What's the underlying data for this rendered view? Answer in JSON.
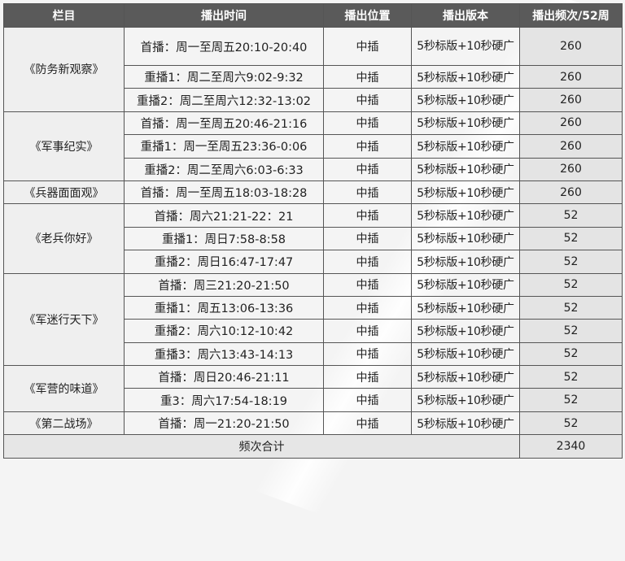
{
  "headers": [
    "栏目",
    "播出时间",
    "播出位置",
    "播出版本",
    "播出频次/52周"
  ],
  "groups": [
    {
      "program": "《防务新观察》",
      "rows": [
        {
          "time": "首播：周一至周五20:10-20:40",
          "position": "中插",
          "version": "5秒标版+10秒硬广",
          "freq": "260"
        },
        {
          "time": "重播1：周二至周六9:02-9:32",
          "position": "中插",
          "version": "5秒标版+10秒硬广",
          "freq": "260"
        },
        {
          "time": "重播2：周二至周六12:32-13:02",
          "position": "中插",
          "version": "5秒标版+10秒硬广",
          "freq": "260"
        }
      ]
    },
    {
      "program": "《军事纪实》",
      "rows": [
        {
          "time": "首播：周一至周五20:46-21:16",
          "position": "中插",
          "version": "5秒标版+10秒硬广",
          "freq": "260"
        },
        {
          "time": "重播1：周一至周五23:36-0:06",
          "position": "中插",
          "version": "5秒标版+10秒硬广",
          "freq": "260"
        },
        {
          "time": "重播2：周二至周六6:03-6:33",
          "position": "中插",
          "version": "5秒标版+10秒硬广",
          "freq": "260"
        }
      ]
    },
    {
      "program": "《兵器面面观》",
      "rows": [
        {
          "time": "首播：周一至周五18:03-18:28",
          "position": "中插",
          "version": "5秒标版+10秒硬广",
          "freq": "260"
        }
      ]
    },
    {
      "program": "《老兵你好》",
      "rows": [
        {
          "time": "首播：周六21:21-22：21",
          "position": "中插",
          "version": "5秒标版+10秒硬广",
          "freq": "52"
        },
        {
          "time": "重播1：周日7:58-8:58",
          "position": "中插",
          "version": "5秒标版+10秒硬广",
          "freq": "52"
        },
        {
          "time": "重播2：周日16:47-17:47",
          "position": "中插",
          "version": "5秒标版+10秒硬广",
          "freq": "52"
        }
      ]
    },
    {
      "program": "《军迷行天下》",
      "rows": [
        {
          "time": "首播：周三21:20-21:50",
          "position": "中插",
          "version": "5秒标版+10秒硬广",
          "freq": "52"
        },
        {
          "time": "重播1：周五13:06-13:36",
          "position": "中插",
          "version": "5秒标版+10秒硬广",
          "freq": "52"
        },
        {
          "time": "重播2：周六10:12-10:42",
          "position": "中插",
          "version": "5秒标版+10秒硬广",
          "freq": "52"
        },
        {
          "time": "重播3：周六13:43-14:13",
          "position": "中插",
          "version": "5秒标版+10秒硬广",
          "freq": "52"
        }
      ]
    },
    {
      "program": "《军营的味道》",
      "rows": [
        {
          "time": "首播：周日20:46-21:11",
          "position": "中插",
          "version": "5秒标版+10秒硬广",
          "freq": "52"
        },
        {
          "time": "重3：周六17:54-18:19",
          "position": "中插",
          "version": "5秒标版+10秒硬广",
          "freq": "52"
        }
      ]
    },
    {
      "program": "《第二战场》",
      "rows": [
        {
          "time": "首播：周一21:20-21:50",
          "position": "中插",
          "version": "5秒标版+10秒硬广",
          "freq": "52"
        }
      ]
    }
  ],
  "total": {
    "label": "频次合计",
    "value": "2340"
  }
}
